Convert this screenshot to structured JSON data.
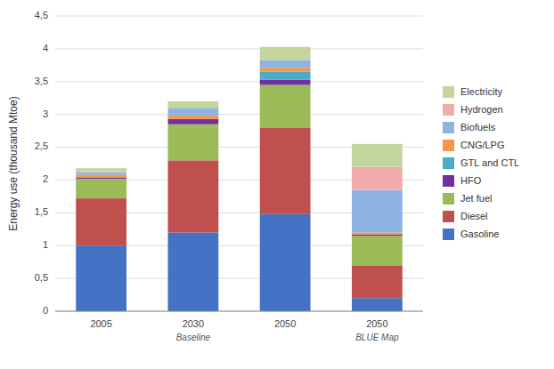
{
  "chart_data": {
    "type": "bar",
    "stacked": true,
    "categories": [
      "2005",
      "2030",
      "2050",
      "2050"
    ],
    "category_sublabels": [
      null,
      "Baseline",
      null,
      "BLUE Map"
    ],
    "ylabel": "Energy use (thousand Mtoe)",
    "ylim": [
      0,
      4.5
    ],
    "yticks": [
      0,
      {
        "value": 0.5,
        "label": "0,5"
      },
      1,
      {
        "value": 1.5,
        "label": "1,5"
      },
      2,
      {
        "value": 2.5,
        "label": "2,5"
      },
      3,
      {
        "value": 3.5,
        "label": "3,5"
      },
      4,
      {
        "value": 4.5,
        "label": "4,5"
      }
    ],
    "grid": true,
    "legend": "right",
    "series": [
      {
        "name": "Gasoline",
        "color": "#4472C4",
        "values": [
          1.0,
          1.2,
          1.48,
          0.2
        ]
      },
      {
        "name": "Diesel",
        "color": "#C0504D",
        "values": [
          0.72,
          1.1,
          1.32,
          0.5
        ]
      },
      {
        "name": "Jet fuel",
        "color": "#9BBB59",
        "values": [
          0.3,
          0.55,
          0.65,
          0.45
        ]
      },
      {
        "name": "HFO",
        "color": "#7030A0",
        "values": [
          0.02,
          0.08,
          0.08,
          0.02
        ]
      },
      {
        "name": "GTL and CTL",
        "color": "#4BACC6",
        "values": [
          0.0,
          0.0,
          0.12,
          0.0
        ]
      },
      {
        "name": "CNG/LPG",
        "color": "#F79646",
        "values": [
          0.04,
          0.05,
          0.06,
          0.03
        ]
      },
      {
        "name": "Biofuels",
        "color": "#8DB4E2",
        "values": [
          0.04,
          0.12,
          0.12,
          0.65
        ]
      },
      {
        "name": "Hydrogen",
        "color": "#F2ABAB",
        "values": [
          0.0,
          0.0,
          0.0,
          0.35
        ]
      },
      {
        "name": "Electricity",
        "color": "#C4D69B",
        "values": [
          0.06,
          0.1,
          0.2,
          0.35
        ]
      }
    ]
  }
}
